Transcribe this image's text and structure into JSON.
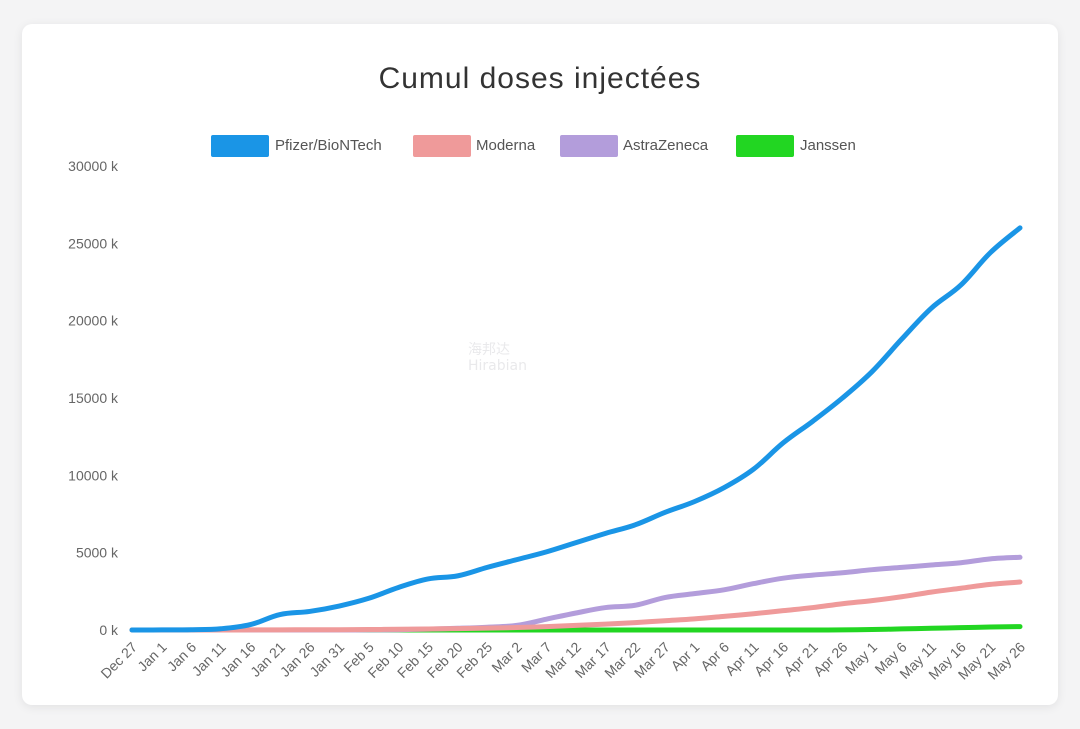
{
  "chart_data": {
    "type": "line",
    "title": "Cumul doses injectées",
    "xlabel": "",
    "ylabel": "",
    "ylim": [
      0,
      30000
    ],
    "y_tick_values": [
      0,
      5000,
      10000,
      15000,
      20000,
      25000,
      30000
    ],
    "y_tick_labels": [
      "0 k",
      "5000 k",
      "10000 k",
      "15000 k",
      "20000 k",
      "25000 k",
      "30000 k"
    ],
    "x_tick_labels": [
      "Dec 27",
      "Jan 1",
      "Jan 6",
      "Jan 11",
      "Jan 16",
      "Jan 21",
      "Jan 26",
      "Jan 31",
      "Feb 5",
      "Feb 10",
      "Feb 15",
      "Feb 20",
      "Feb 25",
      "Mar 2",
      "Mar 7",
      "Mar 12",
      "Mar 17",
      "Mar 22",
      "Mar 27",
      "Apr 1",
      "Apr 6",
      "Apr 11",
      "Apr 16",
      "Apr 21",
      "Apr 26",
      "May 1",
      "May 6",
      "May 11",
      "May 16",
      "May 21",
      "May 26"
    ],
    "grid": false,
    "legend_position": "top",
    "series": [
      {
        "name": "Pfizer/BioNTech",
        "color": "#1a95e6",
        "values": [
          0,
          5,
          15,
          80,
          350,
          1000,
          1200,
          1550,
          2050,
          2750,
          3300,
          3500,
          4050,
          4550,
          5050,
          5650,
          6250,
          6800,
          7600,
          8300,
          9200,
          10400,
          12100,
          13500,
          15000,
          16700,
          18800,
          20800,
          22300,
          24400,
          26000
        ]
      },
      {
        "name": "Moderna",
        "color": "#ef9a9a",
        "values": [
          0,
          0,
          0,
          2,
          5,
          10,
          15,
          20,
          30,
          45,
          65,
          90,
          120,
          160,
          220,
          300,
          380,
          480,
          600,
          720,
          880,
          1050,
          1250,
          1450,
          1700,
          1900,
          2150,
          2450,
          2700,
          2950,
          3100
        ]
      },
      {
        "name": "AstraZeneca",
        "color": "#b39ddb",
        "values": [
          0,
          0,
          0,
          0,
          0,
          0,
          0,
          0,
          5,
          20,
          60,
          110,
          180,
          300,
          700,
          1100,
          1450,
          1600,
          2100,
          2350,
          2600,
          3000,
          3350,
          3550,
          3700,
          3900,
          4050,
          4200,
          4350,
          4600,
          4700
        ]
      },
      {
        "name": "Janssen",
        "color": "#22d622",
        "values": [
          0,
          0,
          0,
          0,
          0,
          0,
          0,
          0,
          0,
          0,
          0,
          0,
          0,
          0,
          0,
          0,
          0,
          0,
          0,
          0,
          0,
          0,
          0,
          0,
          5,
          30,
          70,
          110,
          150,
          190,
          220
        ]
      }
    ]
  },
  "watermark": {
    "line1": "海邦达",
    "line2": "Hirabian"
  }
}
